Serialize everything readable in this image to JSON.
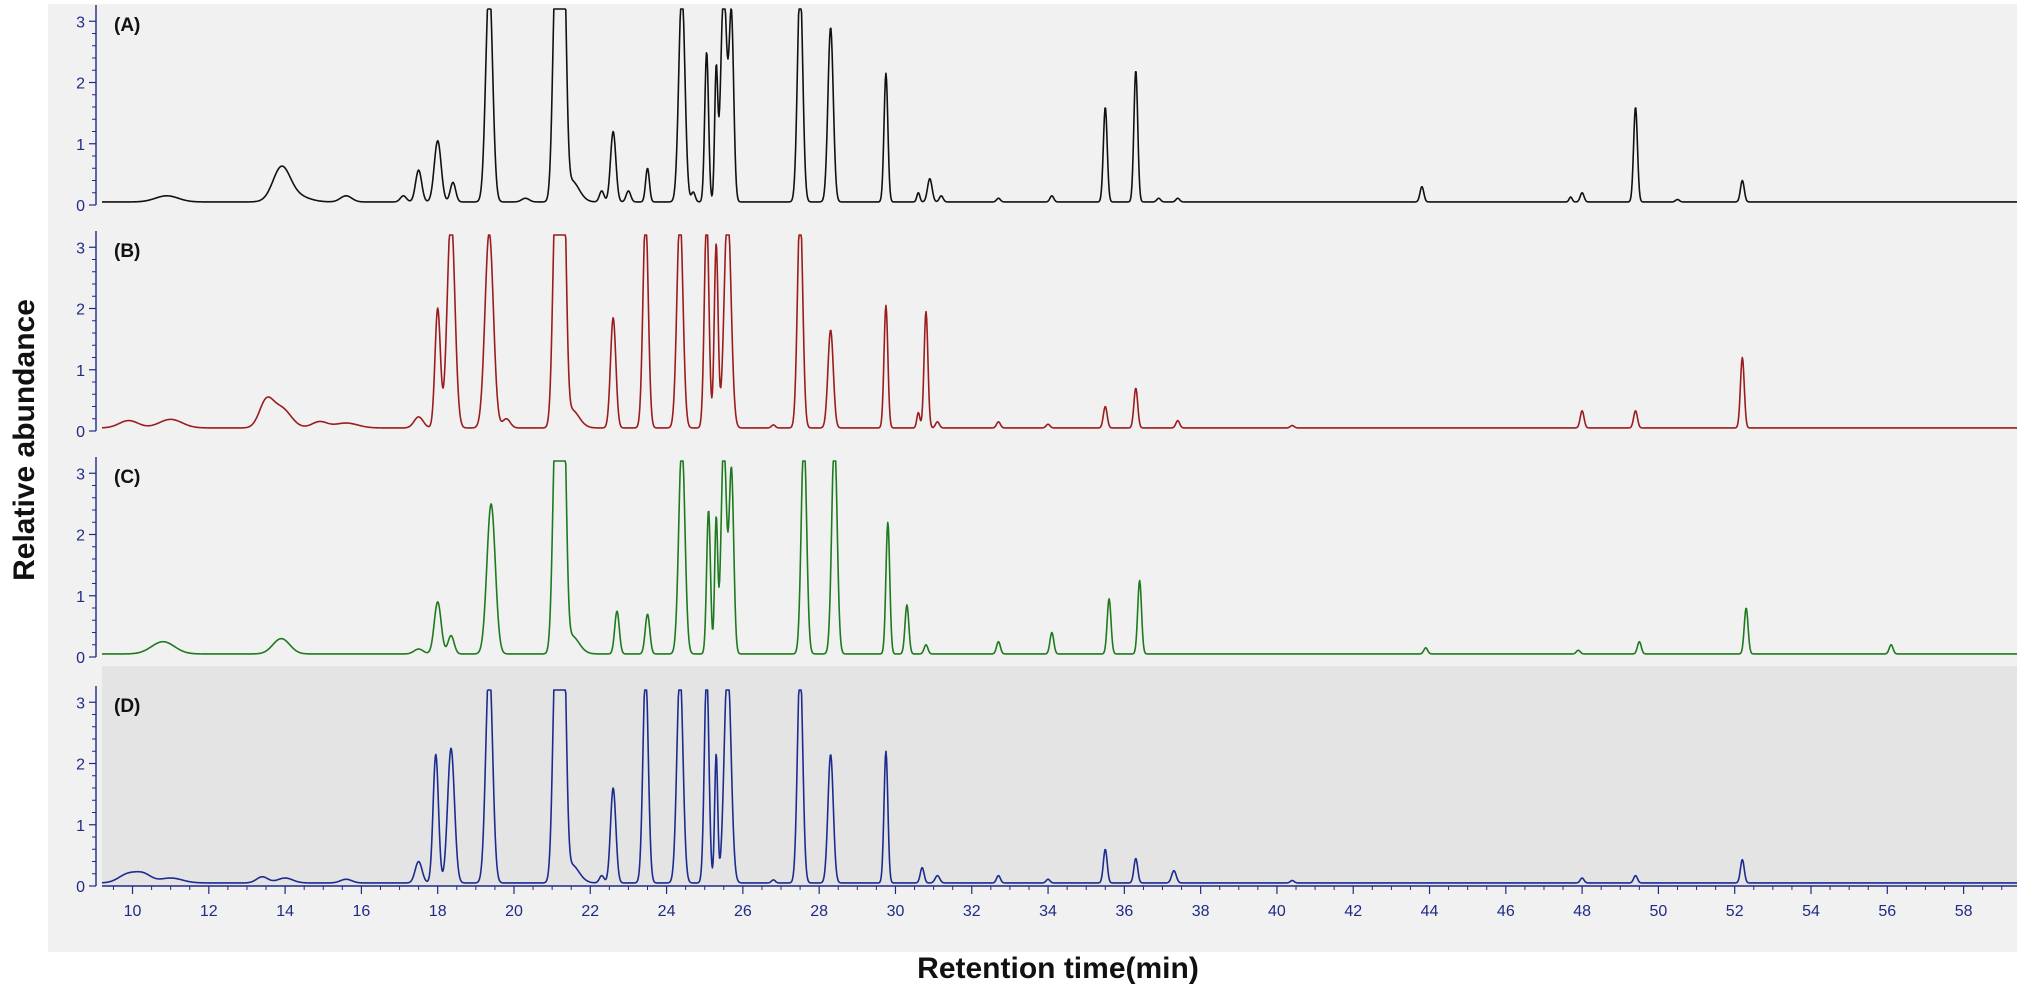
{
  "chart_data": {
    "type": "line",
    "title": "",
    "xlabel": "Retention time(min)",
    "ylabel": "Relative abundance",
    "xlim": [
      9.2,
      59.4
    ],
    "x_ticks": [
      10,
      12,
      14,
      16,
      18,
      20,
      22,
      24,
      26,
      28,
      30,
      32,
      34,
      36,
      38,
      40,
      42,
      44,
      46,
      48,
      50,
      52,
      54,
      56,
      58
    ],
    "ylim": [
      0,
      3.2
    ],
    "y_ticks": [
      0,
      1,
      2,
      3
    ],
    "grid": false,
    "legend": "none",
    "series": [
      {
        "name": "(A)",
        "color": "#111111",
        "baseline": 0.05,
        "peaks": [
          [
            10.9,
            0.1,
            0.3
          ],
          [
            13.9,
            0.5,
            0.22
          ],
          [
            14.2,
            0.12,
            0.35
          ],
          [
            15.6,
            0.1,
            0.15
          ],
          [
            17.1,
            0.1,
            0.08
          ],
          [
            17.5,
            0.52,
            0.08
          ],
          [
            18.0,
            1.0,
            0.09
          ],
          [
            18.4,
            0.32,
            0.07
          ],
          [
            19.35,
            3.6,
            0.09
          ],
          [
            20.3,
            0.06,
            0.1
          ],
          [
            21.1,
            4.0,
            0.08
          ],
          [
            21.3,
            4.0,
            0.07
          ],
          [
            21.5,
            0.35,
            0.2
          ],
          [
            22.3,
            0.18,
            0.06
          ],
          [
            22.6,
            1.15,
            0.07
          ],
          [
            23.0,
            0.18,
            0.06
          ],
          [
            23.5,
            0.55,
            0.05
          ],
          [
            24.4,
            3.5,
            0.08
          ],
          [
            24.7,
            0.16,
            0.05
          ],
          [
            25.05,
            2.45,
            0.05
          ],
          [
            25.3,
            2.1,
            0.04
          ],
          [
            25.5,
            3.5,
            0.08
          ],
          [
            25.7,
            3.0,
            0.06
          ],
          [
            27.5,
            3.6,
            0.07
          ],
          [
            28.3,
            2.85,
            0.07
          ],
          [
            29.75,
            2.1,
            0.05
          ],
          [
            30.6,
            0.15,
            0.04
          ],
          [
            30.9,
            0.38,
            0.06
          ],
          [
            31.2,
            0.1,
            0.05
          ],
          [
            32.7,
            0.06,
            0.05
          ],
          [
            34.1,
            0.1,
            0.05
          ],
          [
            35.5,
            1.55,
            0.05
          ],
          [
            36.3,
            2.15,
            0.05
          ],
          [
            36.9,
            0.06,
            0.05
          ],
          [
            37.4,
            0.06,
            0.05
          ],
          [
            43.8,
            0.25,
            0.05
          ],
          [
            47.7,
            0.08,
            0.04
          ],
          [
            48.0,
            0.15,
            0.05
          ],
          [
            49.4,
            1.55,
            0.05
          ],
          [
            50.5,
            0.04,
            0.05
          ],
          [
            52.2,
            0.35,
            0.05
          ]
        ]
      },
      {
        "name": "(B)",
        "color": "#9b1c1c",
        "baseline": 0.05,
        "peaks": [
          [
            9.9,
            0.12,
            0.25
          ],
          [
            11.0,
            0.14,
            0.3
          ],
          [
            13.5,
            0.4,
            0.18
          ],
          [
            13.9,
            0.32,
            0.25
          ],
          [
            14.9,
            0.1,
            0.2
          ],
          [
            15.6,
            0.08,
            0.3
          ],
          [
            17.5,
            0.18,
            0.12
          ],
          [
            18.0,
            1.95,
            0.07
          ],
          [
            18.35,
            3.5,
            0.1
          ],
          [
            19.35,
            3.2,
            0.11
          ],
          [
            19.8,
            0.15,
            0.1
          ],
          [
            21.1,
            4.0,
            0.08
          ],
          [
            21.3,
            4.0,
            0.07
          ],
          [
            21.5,
            0.3,
            0.2
          ],
          [
            22.6,
            1.8,
            0.07
          ],
          [
            23.45,
            3.5,
            0.07
          ],
          [
            24.35,
            3.5,
            0.08
          ],
          [
            25.05,
            3.5,
            0.06
          ],
          [
            25.3,
            3.0,
            0.05
          ],
          [
            25.6,
            3.6,
            0.09
          ],
          [
            26.8,
            0.05,
            0.05
          ],
          [
            27.5,
            3.6,
            0.07
          ],
          [
            28.3,
            1.6,
            0.07
          ],
          [
            29.75,
            2.0,
            0.05
          ],
          [
            30.6,
            0.25,
            0.04
          ],
          [
            30.8,
            1.9,
            0.05
          ],
          [
            31.1,
            0.1,
            0.05
          ],
          [
            32.7,
            0.1,
            0.05
          ],
          [
            34.0,
            0.06,
            0.05
          ],
          [
            35.5,
            0.35,
            0.05
          ],
          [
            36.3,
            0.65,
            0.05
          ],
          [
            37.4,
            0.12,
            0.05
          ],
          [
            40.4,
            0.04,
            0.05
          ],
          [
            48.0,
            0.28,
            0.05
          ],
          [
            49.4,
            0.28,
            0.05
          ],
          [
            52.2,
            1.15,
            0.05
          ]
        ]
      },
      {
        "name": "(C)",
        "color": "#1d7a1d",
        "baseline": 0.05,
        "peaks": [
          [
            10.8,
            0.2,
            0.3
          ],
          [
            13.9,
            0.25,
            0.22
          ],
          [
            17.5,
            0.08,
            0.12
          ],
          [
            18.0,
            0.85,
            0.09
          ],
          [
            18.35,
            0.3,
            0.08
          ],
          [
            19.4,
            2.45,
            0.11
          ],
          [
            21.1,
            4.0,
            0.08
          ],
          [
            21.3,
            4.0,
            0.07
          ],
          [
            21.5,
            0.3,
            0.2
          ],
          [
            22.7,
            0.7,
            0.06
          ],
          [
            23.5,
            0.65,
            0.06
          ],
          [
            24.4,
            3.5,
            0.08
          ],
          [
            25.1,
            2.35,
            0.05
          ],
          [
            25.3,
            2.2,
            0.04
          ],
          [
            25.5,
            3.5,
            0.07
          ],
          [
            25.7,
            3.0,
            0.06
          ],
          [
            27.6,
            3.6,
            0.07
          ],
          [
            28.4,
            3.6,
            0.07
          ],
          [
            29.8,
            2.15,
            0.05
          ],
          [
            30.3,
            0.8,
            0.05
          ],
          [
            30.8,
            0.15,
            0.05
          ],
          [
            32.7,
            0.2,
            0.05
          ],
          [
            34.1,
            0.35,
            0.05
          ],
          [
            35.6,
            0.9,
            0.05
          ],
          [
            36.4,
            1.2,
            0.05
          ],
          [
            43.9,
            0.1,
            0.05
          ],
          [
            47.9,
            0.06,
            0.05
          ],
          [
            49.5,
            0.2,
            0.05
          ],
          [
            52.3,
            0.75,
            0.05
          ],
          [
            56.1,
            0.15,
            0.05
          ]
        ]
      },
      {
        "name": "(D)",
        "color": "#1c2b8f",
        "baseline": 0.05,
        "peaks": [
          [
            9.9,
            0.15,
            0.25
          ],
          [
            10.3,
            0.12,
            0.2
          ],
          [
            11.0,
            0.08,
            0.3
          ],
          [
            13.4,
            0.1,
            0.15
          ],
          [
            14.0,
            0.08,
            0.2
          ],
          [
            15.6,
            0.06,
            0.15
          ],
          [
            17.5,
            0.35,
            0.09
          ],
          [
            17.95,
            2.1,
            0.07
          ],
          [
            18.35,
            2.2,
            0.09
          ],
          [
            19.35,
            3.6,
            0.09
          ],
          [
            21.1,
            4.0,
            0.08
          ],
          [
            21.3,
            4.0,
            0.07
          ],
          [
            21.5,
            0.3,
            0.2
          ],
          [
            22.3,
            0.12,
            0.06
          ],
          [
            22.6,
            1.55,
            0.07
          ],
          [
            23.45,
            3.5,
            0.07
          ],
          [
            24.35,
            3.5,
            0.08
          ],
          [
            25.05,
            3.5,
            0.06
          ],
          [
            25.3,
            2.1,
            0.04
          ],
          [
            25.6,
            3.6,
            0.09
          ],
          [
            26.8,
            0.05,
            0.05
          ],
          [
            27.5,
            3.6,
            0.07
          ],
          [
            28.3,
            2.1,
            0.07
          ],
          [
            29.75,
            2.15,
            0.05
          ],
          [
            30.7,
            0.25,
            0.05
          ],
          [
            31.1,
            0.12,
            0.06
          ],
          [
            32.7,
            0.12,
            0.05
          ],
          [
            34.0,
            0.06,
            0.05
          ],
          [
            35.5,
            0.55,
            0.05
          ],
          [
            36.3,
            0.4,
            0.05
          ],
          [
            37.3,
            0.2,
            0.06
          ],
          [
            40.4,
            0.04,
            0.05
          ],
          [
            48.0,
            0.08,
            0.05
          ],
          [
            49.4,
            0.12,
            0.05
          ],
          [
            52.2,
            0.38,
            0.05
          ]
        ]
      }
    ]
  }
}
